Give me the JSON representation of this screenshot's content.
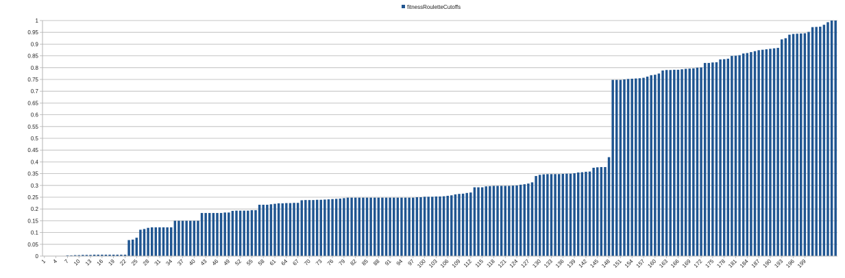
{
  "chart_data": {
    "type": "bar",
    "title": "",
    "xlabel": "",
    "ylabel": "",
    "ylim": [
      0,
      1
    ],
    "yticks": [
      "0",
      "0.05",
      "0.1",
      "0.15",
      "0.2",
      "0.25",
      "0.3",
      "0.35",
      "0.4",
      "0.45",
      "0.5",
      "0.55",
      "0.6",
      "0.65",
      "0.7",
      "0.75",
      "0.8",
      "0.85",
      "0.9",
      "0.95",
      "1"
    ],
    "xtick_labels": [
      "1",
      "4",
      "7",
      "10",
      "13",
      "16",
      "19",
      "22",
      "25",
      "28",
      "31",
      "34",
      "37",
      "40",
      "43",
      "46",
      "49",
      "52",
      "55",
      "58",
      "61",
      "64",
      "67",
      "70",
      "73",
      "76",
      "79",
      "82",
      "85",
      "88",
      "91",
      "94",
      "97",
      "100",
      "103",
      "106",
      "109",
      "112",
      "115",
      "118",
      "121",
      "124",
      "127",
      "130",
      "133",
      "136",
      "139",
      "142",
      "145",
      "148",
      "151",
      "154",
      "157",
      "160",
      "163",
      "166",
      "169",
      "172",
      "175",
      "178",
      "181",
      "184",
      "187",
      "190",
      "193",
      "196",
      "199"
    ],
    "grid": true,
    "legend_position": "top-center",
    "bar_color": "#1f5591",
    "grid_color": "#b3b3b3",
    "series": [
      {
        "name": "fitnessRouletteCutoffs",
        "values": [
          0.001,
          0.001,
          0.001,
          0.001,
          0.001,
          0.001,
          0.003,
          0.003,
          0.004,
          0.004,
          0.005,
          0.005,
          0.005,
          0.006,
          0.006,
          0.006,
          0.006,
          0.006,
          0.006,
          0.006,
          0.006,
          0.006,
          0.068,
          0.07,
          0.078,
          0.112,
          0.115,
          0.12,
          0.122,
          0.122,
          0.122,
          0.122,
          0.122,
          0.122,
          0.15,
          0.15,
          0.15,
          0.15,
          0.15,
          0.15,
          0.15,
          0.183,
          0.183,
          0.183,
          0.183,
          0.183,
          0.183,
          0.185,
          0.185,
          0.192,
          0.193,
          0.193,
          0.193,
          0.193,
          0.195,
          0.195,
          0.218,
          0.218,
          0.218,
          0.22,
          0.222,
          0.224,
          0.224,
          0.225,
          0.225,
          0.226,
          0.226,
          0.237,
          0.238,
          0.238,
          0.238,
          0.239,
          0.239,
          0.24,
          0.241,
          0.242,
          0.243,
          0.244,
          0.246,
          0.248,
          0.248,
          0.248,
          0.248,
          0.248,
          0.248,
          0.248,
          0.248,
          0.248,
          0.248,
          0.248,
          0.248,
          0.248,
          0.248,
          0.248,
          0.248,
          0.248,
          0.248,
          0.25,
          0.25,
          0.252,
          0.252,
          0.252,
          0.253,
          0.253,
          0.254,
          0.256,
          0.258,
          0.262,
          0.264,
          0.265,
          0.268,
          0.27,
          0.292,
          0.292,
          0.292,
          0.296,
          0.297,
          0.298,
          0.298,
          0.298,
          0.298,
          0.298,
          0.299,
          0.3,
          0.303,
          0.305,
          0.308,
          0.313,
          0.34,
          0.345,
          0.347,
          0.348,
          0.348,
          0.348,
          0.348,
          0.349,
          0.35,
          0.35,
          0.352,
          0.355,
          0.356,
          0.358,
          0.359,
          0.375,
          0.377,
          0.378,
          0.378,
          0.42,
          0.748,
          0.748,
          0.748,
          0.75,
          0.752,
          0.753,
          0.754,
          0.755,
          0.757,
          0.762,
          0.768,
          0.77,
          0.775,
          0.788,
          0.79,
          0.79,
          0.791,
          0.791,
          0.793,
          0.795,
          0.796,
          0.797,
          0.8,
          0.801,
          0.82,
          0.82,
          0.822,
          0.823,
          0.835,
          0.836,
          0.838,
          0.85,
          0.851,
          0.853,
          0.86,
          0.862,
          0.866,
          0.87,
          0.874,
          0.876,
          0.878,
          0.88,
          0.882,
          0.884,
          0.92,
          0.925,
          0.94,
          0.943,
          0.944,
          0.945,
          0.946,
          0.952,
          0.972,
          0.973,
          0.974,
          0.982,
          0.993,
          1.0,
          1.0
        ]
      }
    ]
  }
}
